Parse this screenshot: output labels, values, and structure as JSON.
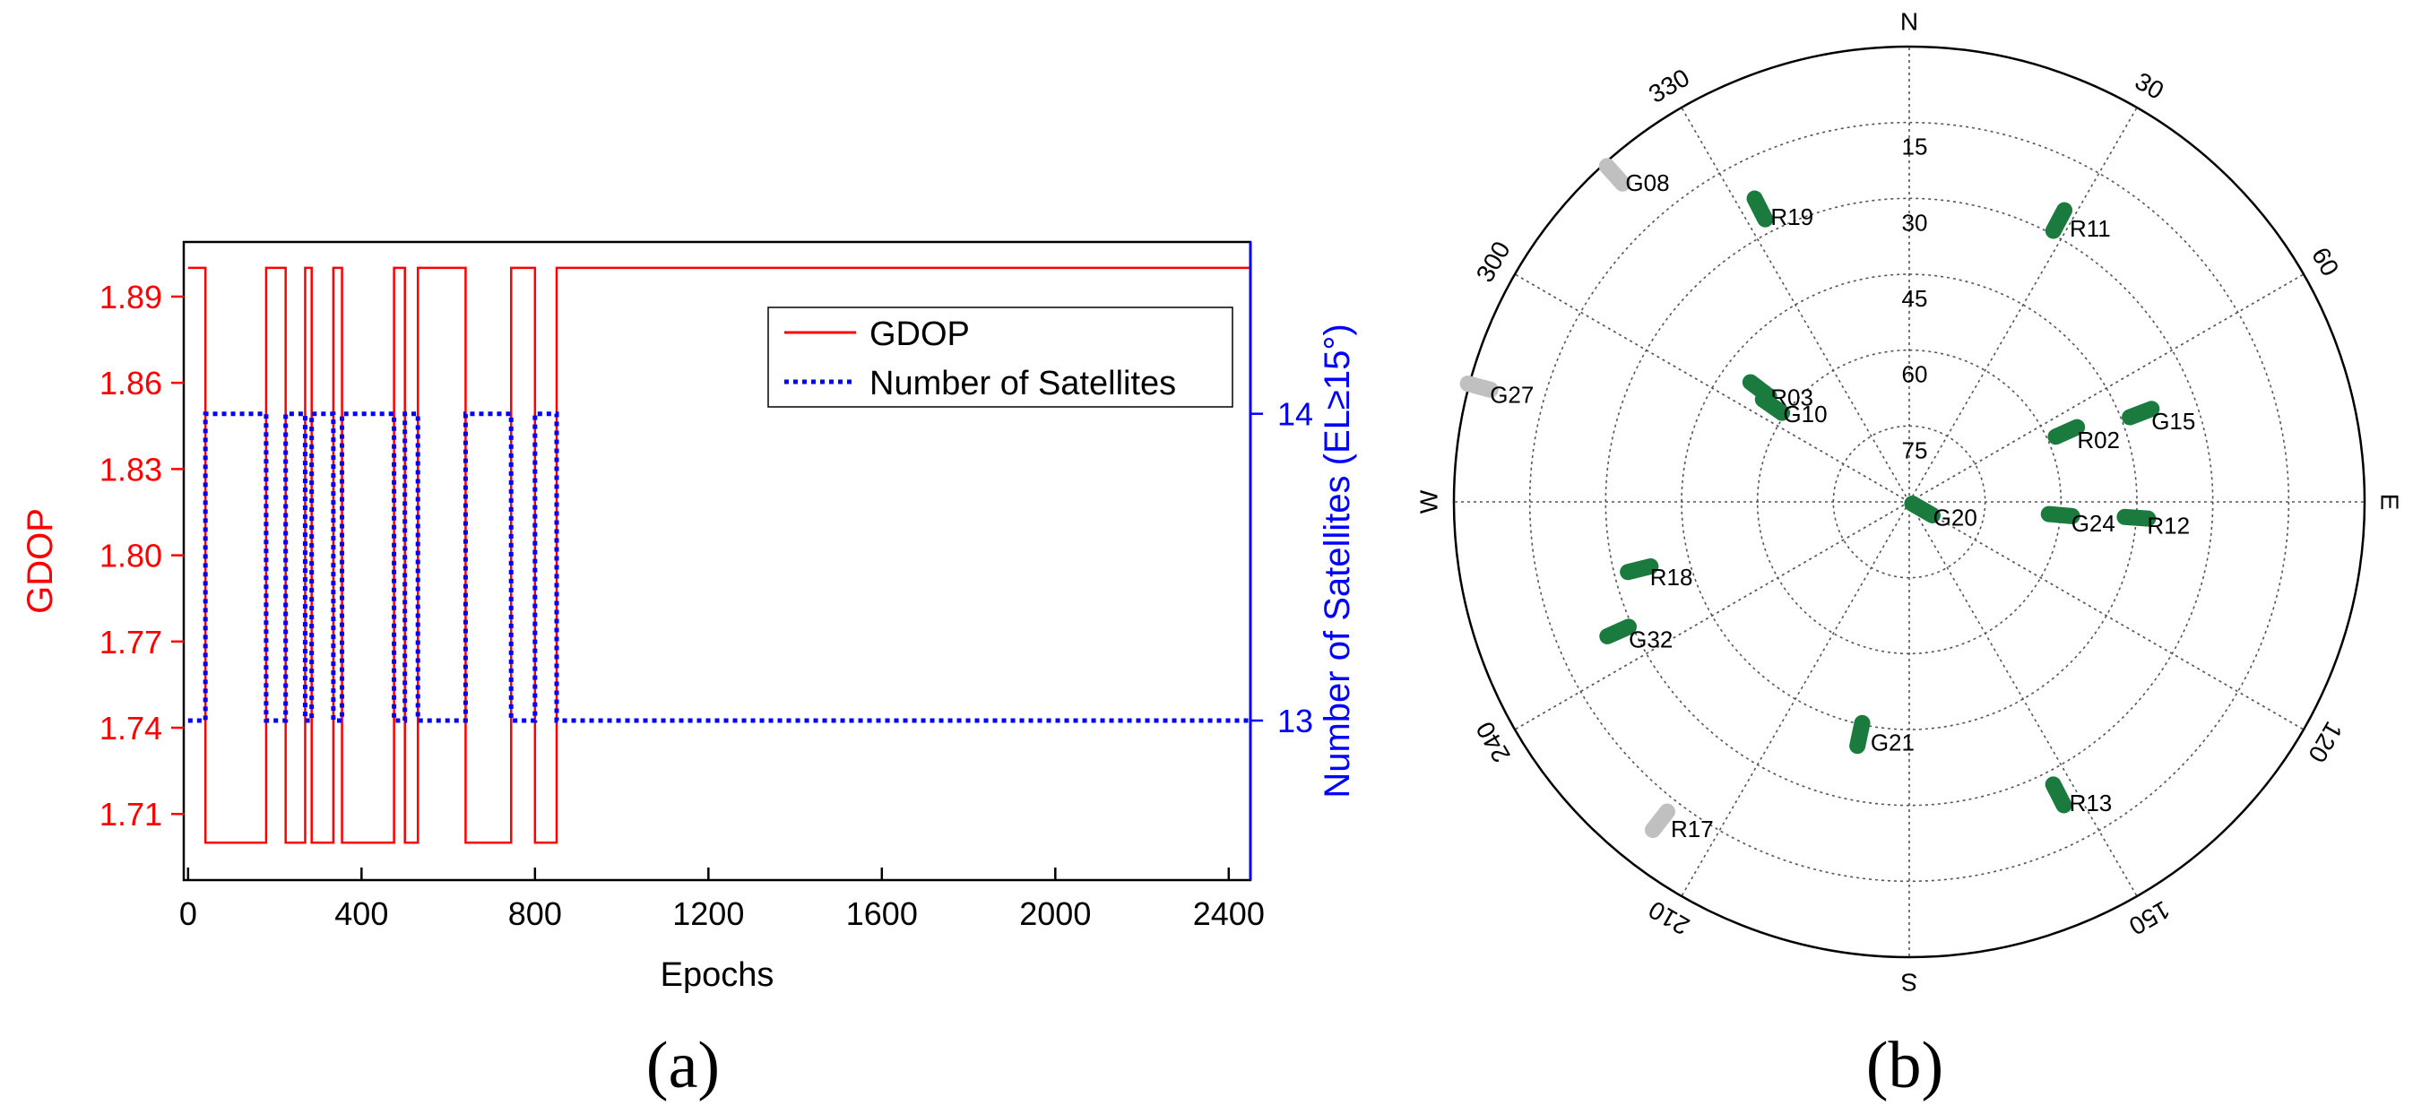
{
  "colors": {
    "gdop": "#ff0000",
    "satellites": "#0000ff",
    "axis": "#000000",
    "visible_sat": "#1b7a3e",
    "masked_sat": "#c0c0c0",
    "grid": "#555555"
  },
  "chart_data": [
    {
      "panel_label": "(a)",
      "type": "line",
      "title": "",
      "xlabel": "Epochs",
      "ylabel_left": "GDOP",
      "ylabel_right": "Number of Satellites (EL≥15°)",
      "xlim": [
        -10,
        2450
      ],
      "x_ticks": [
        0,
        400,
        800,
        1200,
        1600,
        2000,
        2400
      ],
      "x_tick_labels": [
        "0",
        "400",
        "800",
        "1200",
        "1600",
        "2000",
        "2400"
      ],
      "ylim_left": [
        1.687,
        1.909
      ],
      "y_ticks_left": [
        1.71,
        1.74,
        1.77,
        1.8,
        1.83,
        1.86,
        1.89
      ],
      "y_tick_labels_left": [
        "1.71",
        "1.74",
        "1.77",
        "1.80",
        "1.83",
        "1.86",
        "1.89"
      ],
      "ylim_right": [
        12.48,
        14.56
      ],
      "y_ticks_right": [
        13,
        14
      ],
      "y_tick_labels_right": [
        "13",
        "14"
      ],
      "legend_position": "top-right",
      "legend": [
        "GDOP",
        "Number of Satellites"
      ],
      "series": [
        {
          "name": "GDOP",
          "axis": "left",
          "style": "solid",
          "step": true,
          "x": [
            0,
            40,
            180,
            225,
            270,
            285,
            335,
            355,
            475,
            500,
            530,
            640,
            745,
            800,
            850,
            2450
          ],
          "values": [
            1.9,
            1.7,
            1.9,
            1.7,
            1.9,
            1.7,
            1.9,
            1.7,
            1.9,
            1.7,
            1.9,
            1.7,
            1.9,
            1.7,
            1.9,
            1.9
          ]
        },
        {
          "name": "Number of Satellites",
          "axis": "right",
          "style": "dotted",
          "step": true,
          "x": [
            0,
            40,
            180,
            225,
            270,
            285,
            335,
            355,
            475,
            500,
            530,
            640,
            745,
            800,
            850,
            2450
          ],
          "values": [
            13,
            14,
            13,
            14,
            13,
            14,
            13,
            14,
            13,
            14,
            13,
            14,
            13,
            14,
            13,
            13
          ]
        }
      ]
    },
    {
      "panel_label": "(b)",
      "type": "scatter",
      "title": "",
      "coordinate_system": "polar (azimuth in degrees clockwise from North, elevation in degrees)",
      "direction_labels": [
        "N",
        "E",
        "S",
        "W"
      ],
      "azimuth_ticks": [
        30,
        60,
        120,
        150,
        210,
        240,
        300,
        330
      ],
      "azimuth_tick_labels": [
        "30",
        "60",
        "120",
        "150",
        "210",
        "240",
        "300",
        "330"
      ],
      "elevation_rings": [
        15,
        30,
        45,
        60,
        75
      ],
      "elevation_ring_labels": [
        "15",
        "30",
        "45",
        "60",
        "75"
      ],
      "satellites": [
        {
          "prn": "G08",
          "az": 318,
          "el": 3,
          "color": "#c0c0c0",
          "tracked": false
        },
        {
          "prn": "G27",
          "az": 285,
          "el": 2,
          "color": "#c0c0c0",
          "tracked": false
        },
        {
          "prn": "R17",
          "az": 218,
          "el": 10,
          "color": "#c0c0c0",
          "tracked": false
        },
        {
          "prn": "R19",
          "az": 333,
          "el": 25,
          "color": "#1b7a3e",
          "tracked": true
        },
        {
          "prn": "R11",
          "az": 28,
          "el": 27,
          "color": "#1b7a3e",
          "tracked": true
        },
        {
          "prn": "R03",
          "az": 307,
          "el": 53,
          "color": "#1b7a3e",
          "tracked": true
        },
        {
          "prn": "G10",
          "az": 305,
          "el": 57,
          "color": "#1b7a3e",
          "tracked": true
        },
        {
          "prn": "R02",
          "az": 66,
          "el": 56,
          "color": "#1b7a3e",
          "tracked": true
        },
        {
          "prn": "G15",
          "az": 69,
          "el": 41,
          "color": "#1b7a3e",
          "tracked": true
        },
        {
          "prn": "G20",
          "az": 120,
          "el": 87,
          "color": "#1b7a3e",
          "tracked": true
        },
        {
          "prn": "G24",
          "az": 95,
          "el": 60,
          "color": "#1b7a3e",
          "tracked": true
        },
        {
          "prn": "R12",
          "az": 94,
          "el": 45,
          "color": "#1b7a3e",
          "tracked": true
        },
        {
          "prn": "R18",
          "az": 256,
          "el": 35,
          "color": "#1b7a3e",
          "tracked": true
        },
        {
          "prn": "G32",
          "az": 246,
          "el": 27,
          "color": "#1b7a3e",
          "tracked": true
        },
        {
          "prn": "G21",
          "az": 192,
          "el": 43,
          "color": "#1b7a3e",
          "tracked": true
        },
        {
          "prn": "R13",
          "az": 153,
          "el": 25,
          "color": "#1b7a3e",
          "tracked": true
        }
      ]
    }
  ]
}
